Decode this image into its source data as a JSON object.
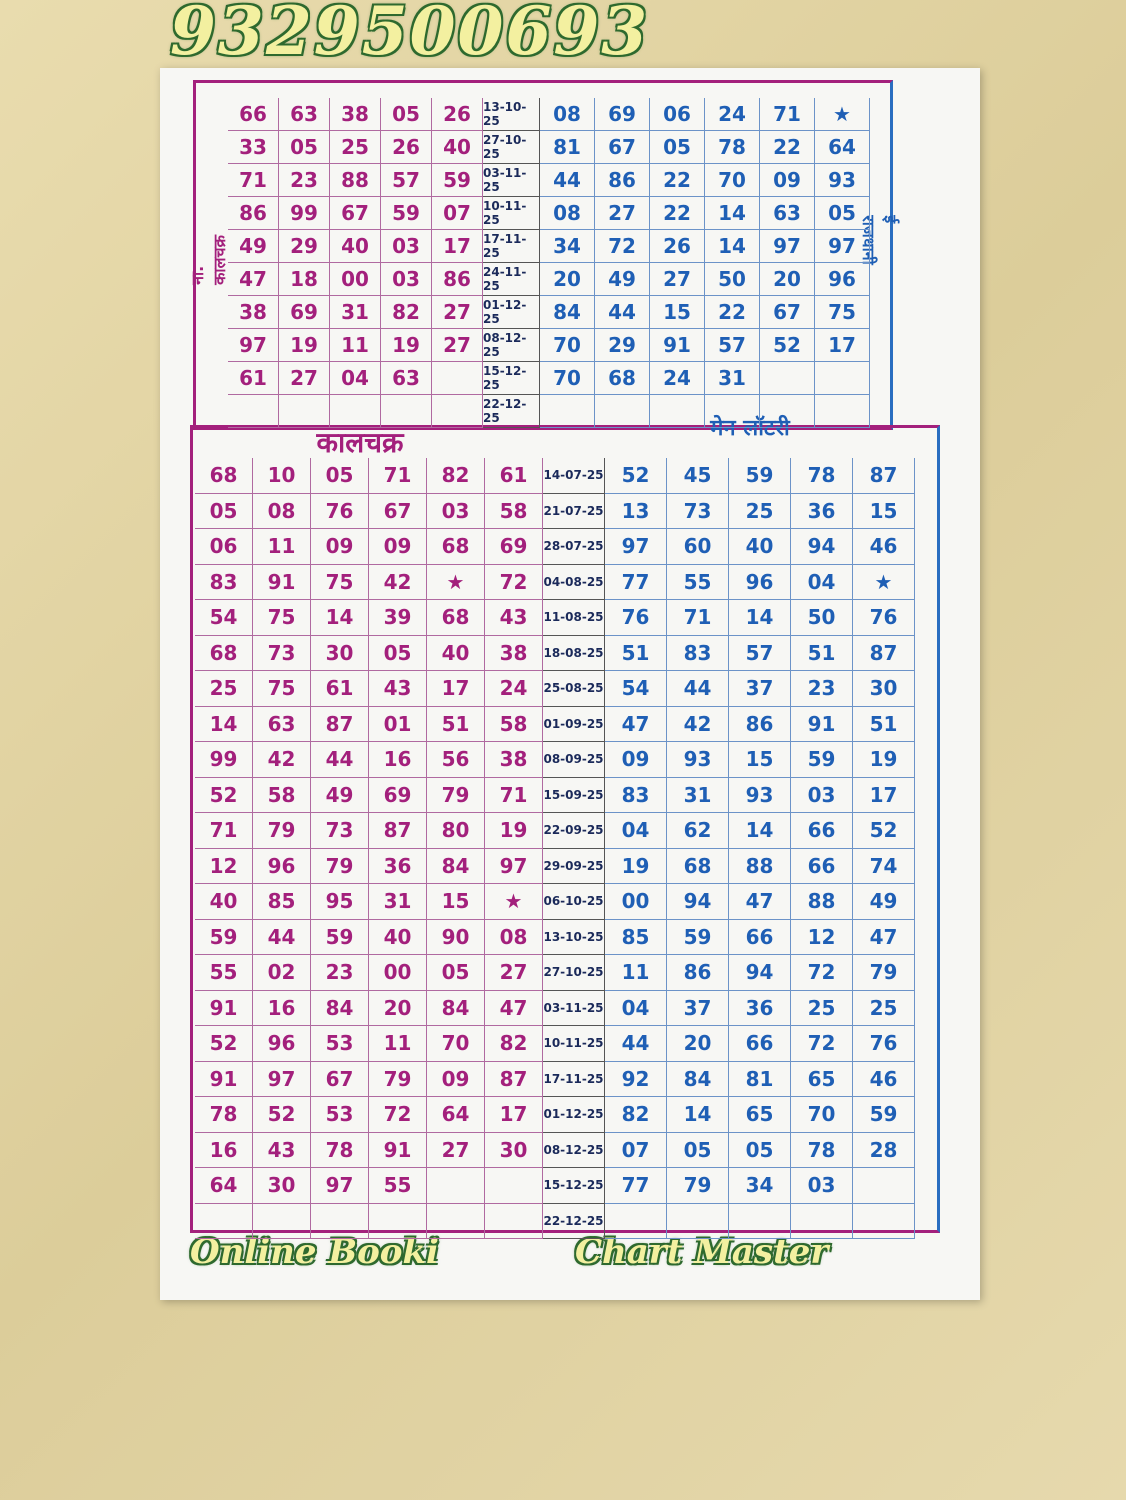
{
  "watermark": {
    "phone": "9329500693",
    "footer_left": "Online Booki",
    "footer_right": "Chart Master"
  },
  "top": {
    "left_label": "ना. कालचक्र",
    "right_label": "ई राजधानी",
    "rows": [
      {
        "left": [
          "66",
          "63",
          "38",
          "05",
          "26"
        ],
        "date": "13-10-25",
        "right": [
          "08",
          "69",
          "06",
          "24",
          "71",
          "★"
        ]
      },
      {
        "left": [
          "33",
          "05",
          "25",
          "26",
          "40"
        ],
        "date": "27-10-25",
        "right": [
          "81",
          "67",
          "05",
          "78",
          "22",
          "64"
        ]
      },
      {
        "left": [
          "71",
          "23",
          "88",
          "57",
          "59"
        ],
        "date": "03-11-25",
        "right": [
          "44",
          "86",
          "22",
          "70",
          "09",
          "93"
        ]
      },
      {
        "left": [
          "86",
          "99",
          "67",
          "59",
          "07"
        ],
        "date": "10-11-25",
        "right": [
          "08",
          "27",
          "22",
          "14",
          "63",
          "05"
        ]
      },
      {
        "left": [
          "49",
          "29",
          "40",
          "03",
          "17"
        ],
        "date": "17-11-25",
        "right": [
          "34",
          "72",
          "26",
          "14",
          "97",
          "97"
        ]
      },
      {
        "left": [
          "47",
          "18",
          "00",
          "03",
          "86"
        ],
        "date": "24-11-25",
        "right": [
          "20",
          "49",
          "27",
          "50",
          "20",
          "96"
        ]
      },
      {
        "left": [
          "38",
          "69",
          "31",
          "82",
          "27"
        ],
        "date": "01-12-25",
        "right": [
          "84",
          "44",
          "15",
          "22",
          "67",
          "75"
        ]
      },
      {
        "left": [
          "97",
          "19",
          "11",
          "19",
          "27"
        ],
        "date": "08-12-25",
        "right": [
          "70",
          "29",
          "91",
          "57",
          "52",
          "17"
        ]
      },
      {
        "left": [
          "61",
          "27",
          "04",
          "63"
        ],
        "date": "15-12-25",
        "right": [
          "70",
          "68",
          "24",
          "31"
        ]
      },
      {
        "left": [],
        "date": "22-12-25",
        "right": []
      }
    ]
  },
  "bottom": {
    "left_title": "कालचक्र",
    "right_title": "मेन लॉटरी",
    "rows": [
      {
        "left": [
          "68",
          "10",
          "05",
          "71",
          "82",
          "61"
        ],
        "date": "14-07-25",
        "right": [
          "52",
          "45",
          "59",
          "78",
          "87"
        ]
      },
      {
        "left": [
          "05",
          "08",
          "76",
          "67",
          "03",
          "58"
        ],
        "date": "21-07-25",
        "right": [
          "13",
          "73",
          "25",
          "36",
          "15"
        ]
      },
      {
        "left": [
          "06",
          "11",
          "09",
          "09",
          "68",
          "69"
        ],
        "date": "28-07-25",
        "right": [
          "97",
          "60",
          "40",
          "94",
          "46"
        ]
      },
      {
        "left": [
          "83",
          "91",
          "75",
          "42",
          "★",
          "72"
        ],
        "date": "04-08-25",
        "right": [
          "77",
          "55",
          "96",
          "04",
          "★"
        ]
      },
      {
        "left": [
          "54",
          "75",
          "14",
          "39",
          "68",
          "43"
        ],
        "date": "11-08-25",
        "right": [
          "76",
          "71",
          "14",
          "50",
          "76"
        ]
      },
      {
        "left": [
          "68",
          "73",
          "30",
          "05",
          "40",
          "38"
        ],
        "date": "18-08-25",
        "right": [
          "51",
          "83",
          "57",
          "51",
          "87"
        ]
      },
      {
        "left": [
          "25",
          "75",
          "61",
          "43",
          "17",
          "24"
        ],
        "date": "25-08-25",
        "right": [
          "54",
          "44",
          "37",
          "23",
          "30"
        ]
      },
      {
        "left": [
          "14",
          "63",
          "87",
          "01",
          "51",
          "58"
        ],
        "date": "01-09-25",
        "right": [
          "47",
          "42",
          "86",
          "91",
          "51"
        ]
      },
      {
        "left": [
          "99",
          "42",
          "44",
          "16",
          "56",
          "38"
        ],
        "date": "08-09-25",
        "right": [
          "09",
          "93",
          "15",
          "59",
          "19"
        ]
      },
      {
        "left": [
          "52",
          "58",
          "49",
          "69",
          "79",
          "71"
        ],
        "date": "15-09-25",
        "right": [
          "83",
          "31",
          "93",
          "03",
          "17"
        ]
      },
      {
        "left": [
          "71",
          "79",
          "73",
          "87",
          "80",
          "19"
        ],
        "date": "22-09-25",
        "right": [
          "04",
          "62",
          "14",
          "66",
          "52"
        ]
      },
      {
        "left": [
          "12",
          "96",
          "79",
          "36",
          "84",
          "97"
        ],
        "date": "29-09-25",
        "right": [
          "19",
          "68",
          "88",
          "66",
          "74"
        ]
      },
      {
        "left": [
          "40",
          "85",
          "95",
          "31",
          "15",
          "★"
        ],
        "date": "06-10-25",
        "right": [
          "00",
          "94",
          "47",
          "88",
          "49"
        ]
      },
      {
        "left": [
          "59",
          "44",
          "59",
          "40",
          "90",
          "08"
        ],
        "date": "13-10-25",
        "right": [
          "85",
          "59",
          "66",
          "12",
          "47"
        ]
      },
      {
        "left": [
          "55",
          "02",
          "23",
          "00",
          "05",
          "27"
        ],
        "date": "27-10-25",
        "right": [
          "11",
          "86",
          "94",
          "72",
          "79"
        ]
      },
      {
        "left": [
          "91",
          "16",
          "84",
          "20",
          "84",
          "47"
        ],
        "date": "03-11-25",
        "right": [
          "04",
          "37",
          "36",
          "25",
          "25"
        ]
      },
      {
        "left": [
          "52",
          "96",
          "53",
          "11",
          "70",
          "82"
        ],
        "date": "10-11-25",
        "right": [
          "44",
          "20",
          "66",
          "72",
          "76"
        ]
      },
      {
        "left": [
          "91",
          "97",
          "67",
          "79",
          "09",
          "87"
        ],
        "date": "17-11-25",
        "right": [
          "92",
          "84",
          "81",
          "65",
          "46"
        ]
      },
      {
        "left": [
          "78",
          "52",
          "53",
          "72",
          "64",
          "17"
        ],
        "date": "01-12-25",
        "right": [
          "82",
          "14",
          "65",
          "70",
          "59"
        ]
      },
      {
        "left": [
          "16",
          "43",
          "78",
          "91",
          "27",
          "30"
        ],
        "date": "08-12-25",
        "right": [
          "07",
          "05",
          "05",
          "78",
          "28"
        ]
      },
      {
        "left": [
          "64",
          "30",
          "97",
          "55"
        ],
        "date": "15-12-25",
        "right": [
          "77",
          "79",
          "34",
          "03"
        ]
      },
      {
        "left": [],
        "date": "22-12-25",
        "right": []
      }
    ]
  }
}
